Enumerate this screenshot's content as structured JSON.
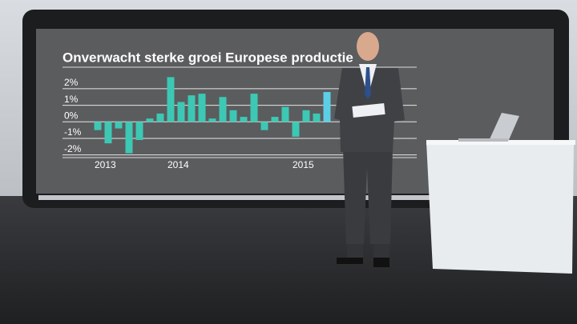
{
  "chart_data": {
    "type": "bar",
    "title": "Onverwacht sterke groei Europese productie",
    "categories": [
      "2013",
      null,
      null,
      null,
      null,
      null,
      null,
      "2014",
      null,
      null,
      null,
      null,
      null,
      null,
      null,
      null,
      null,
      null,
      null,
      "2015",
      null,
      null,
      null
    ],
    "values": [
      -0.5,
      -1.3,
      -0.4,
      -1.9,
      -1.1,
      0.2,
      0.5,
      2.7,
      1.2,
      1.6,
      1.7,
      0.2,
      1.5,
      0.7,
      0.3,
      1.7,
      -0.5,
      0.3,
      0.9,
      -0.9,
      0.7,
      0.5,
      1.8
    ],
    "colors": [
      "#3cc8b4",
      "#3cc8b4",
      "#3cc8b4",
      "#3cc8b4",
      "#3cc8b4",
      "#3cc8b4",
      "#3cc8b4",
      "#3cc8b4",
      "#3cc8b4",
      "#3cc8b4",
      "#3cc8b4",
      "#3cc8b4",
      "#3cc8b4",
      "#3cc8b4",
      "#3cc8b4",
      "#3cc8b4",
      "#3cc8b4",
      "#3cc8b4",
      "#3cc8b4",
      "#3cc8b4",
      "#3cc8b4",
      "#3cc8b4",
      "#5ccfe6"
    ],
    "ylim": [
      -2.5,
      3.3
    ],
    "yticks": [
      {
        "value": 2,
        "label": "2%"
      },
      {
        "value": 1,
        "label": "1%"
      },
      {
        "value": 0,
        "label": "0%"
      },
      {
        "value": -1,
        "label": "-1%"
      },
      {
        "value": -2,
        "label": "-2%"
      }
    ],
    "grid": true
  }
}
